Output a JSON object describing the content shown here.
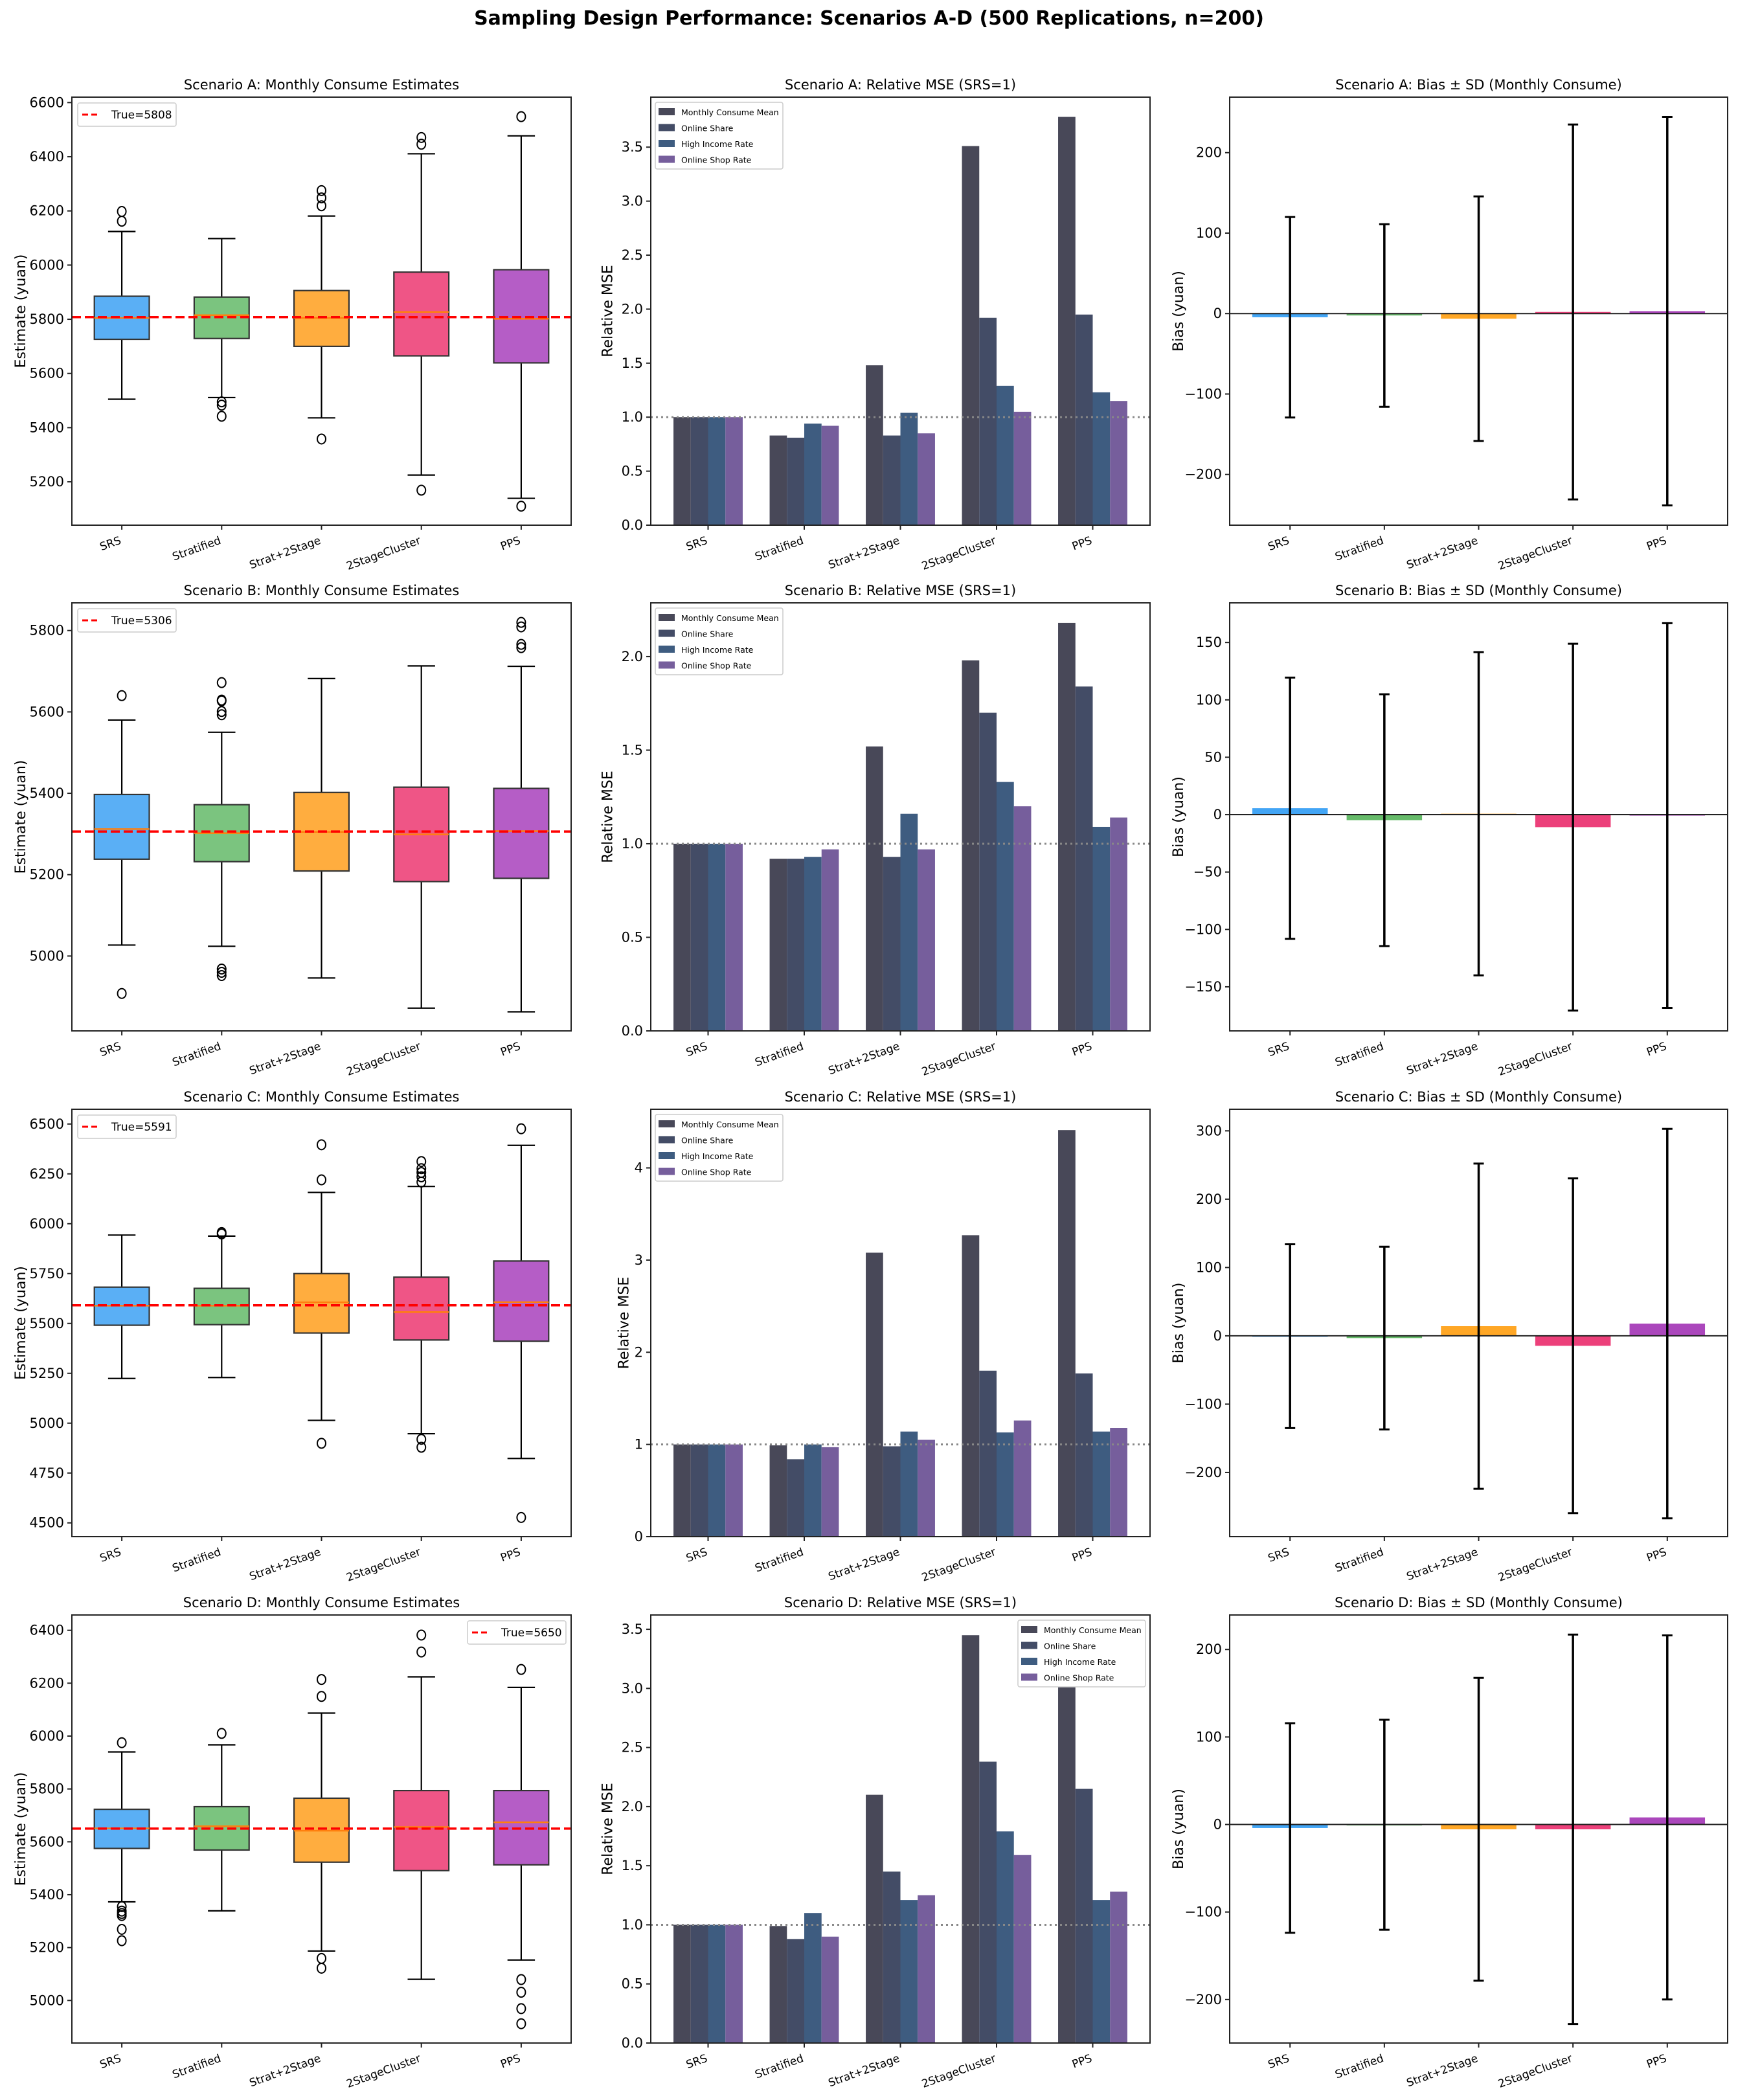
{
  "figure": {
    "title": "Sampling Design Performance: Scenarios A-D (500 Replications, n=200)"
  },
  "colors": {
    "box_fills": [
      "#5aaff5",
      "#7bc47f",
      "#ffad3f",
      "#ef5586",
      "#b55dc6"
    ],
    "bias_fills": [
      "#42a5f5",
      "#66bb6a",
      "#ffa726",
      "#ec407a",
      "#ab47bc"
    ],
    "series": [
      "#484858",
      "#434c66",
      "#3e5c80",
      "#765e9c"
    ],
    "median": "#ff7f0e",
    "true_line": "#ff0000"
  },
  "chart_data": [
    {
      "type": "box",
      "title": "Scenario A: Monthly Consume Estimates",
      "ylabel": "Estimate (yuan)",
      "categories": [
        "SRS",
        "Stratified",
        "Strat+2Stage",
        "2StageCluster",
        "PPS"
      ],
      "ylim": [
        5040,
        6620
      ],
      "yticks": [
        5200,
        5400,
        5600,
        5800,
        6000,
        6200,
        6400,
        6600
      ],
      "ytick_labels": [
        "5200",
        "5400",
        "5600",
        "5800",
        "6000",
        "6200",
        "6400",
        "6600"
      ],
      "true_value": 5808,
      "legend": "True=5808",
      "legend_loc": "upper-left",
      "boxes": [
        {
          "lo": 5505,
          "q1": 5726,
          "med": 5805,
          "q3": 5885,
          "hi": 6124,
          "out": [
            6162,
            6198
          ]
        },
        {
          "lo": 5511,
          "q1": 5729,
          "med": 5815,
          "q3": 5882,
          "hi": 6098,
          "out": [
            5495,
            5483,
            5442
          ]
        },
        {
          "lo": 5436,
          "q1": 5700,
          "med": 5805,
          "q3": 5906,
          "hi": 6181,
          "out": [
            5358,
            6219,
            6248,
            6275
          ]
        },
        {
          "lo": 5225,
          "q1": 5665,
          "med": 5827,
          "q3": 5974,
          "hi": 6411,
          "out": [
            5169,
            6446,
            6471
          ]
        },
        {
          "lo": 5139,
          "q1": 5639,
          "med": 5802,
          "q3": 5983,
          "hi": 6477,
          "out": [
            5110,
            6548
          ]
        }
      ]
    },
    {
      "type": "bar",
      "title": "Scenario A: Relative MSE (SRS=1)",
      "ylabel": "Relative MSE",
      "categories": [
        "SRS",
        "Stratified",
        "Strat+2Stage",
        "2StageCluster",
        "PPS"
      ],
      "ylim": [
        0,
        3.963
      ],
      "yticks": [
        0,
        0.5,
        1,
        1.5,
        2,
        2.5,
        3,
        3.5
      ],
      "ytick_labels": [
        "0.0",
        "0.5",
        "1.0",
        "1.5",
        "2.0",
        "2.5",
        "3.0",
        "3.5"
      ],
      "reference_line": 1.0,
      "legend_loc": "upper-left",
      "series": [
        {
          "name": "Monthly Consume Mean",
          "values": [
            1.0,
            0.83,
            1.48,
            3.51,
            3.78
          ]
        },
        {
          "name": "Online Share",
          "values": [
            1.0,
            0.81,
            0.83,
            1.92,
            1.95
          ]
        },
        {
          "name": "High Income Rate",
          "values": [
            1.0,
            0.94,
            1.04,
            1.29,
            1.23
          ]
        },
        {
          "name": "Online Shop Rate",
          "values": [
            1.0,
            0.92,
            0.85,
            1.05,
            1.15
          ]
        }
      ]
    },
    {
      "type": "bias",
      "title": "Scenario A: Bias ± SD (Monthly Consume)",
      "ylabel": "Bias (yuan)",
      "categories": [
        "SRS",
        "Stratified",
        "Strat+2Stage",
        "2StageCluster",
        "PPS"
      ],
      "ylim": [
        -263,
        269
      ],
      "yticks": [
        -200,
        -100,
        0,
        100,
        200
      ],
      "ytick_labels": [
        "−200",
        "−100",
        "0",
        "100",
        "200"
      ],
      "bias": [
        -4.6,
        -2.4,
        -6.4,
        2.0,
        3.0
      ],
      "sd": [
        124.6,
        113.5,
        152.0,
        233.0,
        241.5
      ]
    },
    {
      "type": "box",
      "title": "Scenario B: Monthly Consume Estimates",
      "ylabel": "Estimate (yuan)",
      "categories": [
        "SRS",
        "Stratified",
        "Strat+2Stage",
        "2StageCluster",
        "PPS"
      ],
      "ylim": [
        4816,
        5868
      ],
      "yticks": [
        5000,
        5200,
        5400,
        5600,
        5800
      ],
      "ytick_labels": [
        "5000",
        "5200",
        "5400",
        "5600",
        "5800"
      ],
      "true_value": 5306,
      "legend": "True=5306",
      "legend_loc": "upper-left",
      "boxes": [
        {
          "lo": 5027,
          "q1": 5238,
          "med": 5312,
          "q3": 5397,
          "hi": 5580,
          "out": [
            5640,
            4908
          ]
        },
        {
          "lo": 5024,
          "q1": 5232,
          "med": 5302,
          "q3": 5372,
          "hi": 5550,
          "out": [
            5672,
            5629,
            5627,
            5601,
            5593,
            4968,
            4960,
            4952
          ]
        },
        {
          "lo": 4946,
          "q1": 5209,
          "med": 5305,
          "q3": 5402,
          "hi": 5682,
          "out": []
        },
        {
          "lo": 4872,
          "q1": 5183,
          "med": 5299,
          "q3": 5415,
          "hi": 5713,
          "out": []
        },
        {
          "lo": 4863,
          "q1": 5191,
          "med": 5307,
          "q3": 5412,
          "hi": 5712,
          "out": [
            5820,
            5809,
            5766,
            5758
          ]
        }
      ]
    },
    {
      "type": "bar",
      "title": "Scenario B: Relative MSE (SRS=1)",
      "ylabel": "Relative MSE",
      "categories": [
        "SRS",
        "Stratified",
        "Strat+2Stage",
        "2StageCluster",
        "PPS"
      ],
      "ylim": [
        0,
        2.287
      ],
      "yticks": [
        0,
        0.5,
        1,
        1.5,
        2
      ],
      "ytick_labels": [
        "0.0",
        "0.5",
        "1.0",
        "1.5",
        "2.0"
      ],
      "reference_line": 1.0,
      "legend_loc": "upper-left",
      "series": [
        {
          "name": "Monthly Consume Mean",
          "values": [
            1.0,
            0.92,
            1.52,
            1.98,
            2.18
          ]
        },
        {
          "name": "Online Share",
          "values": [
            1.0,
            0.92,
            0.93,
            1.7,
            1.84
          ]
        },
        {
          "name": "High Income Rate",
          "values": [
            1.0,
            0.93,
            1.16,
            1.33,
            1.09
          ]
        },
        {
          "name": "Online Shop Rate",
          "values": [
            1.0,
            0.97,
            0.97,
            1.2,
            1.14
          ]
        }
      ]
    },
    {
      "type": "bias",
      "title": "Scenario B: Bias ± SD (Monthly Consume)",
      "ylabel": "Bias (yuan)",
      "categories": [
        "SRS",
        "Stratified",
        "Strat+2Stage",
        "2StageCluster",
        "PPS"
      ],
      "ylim": [
        -188.4,
        184.5
      ],
      "yticks": [
        -150,
        -100,
        -50,
        0,
        50,
        100,
        150
      ],
      "ytick_labels": [
        "−150",
        "−100",
        "−50",
        "0",
        "50",
        "100",
        "150"
      ],
      "bias": [
        5.6,
        -4.8,
        0.8,
        -10.9,
        -0.8
      ],
      "sd": [
        113.8,
        109.7,
        140.8,
        159.8,
        167.6
      ]
    },
    {
      "type": "box",
      "title": "Scenario C: Monthly Consume Estimates",
      "ylabel": "Estimate (yuan)",
      "categories": [
        "SRS",
        "Stratified",
        "Strat+2Stage",
        "2StageCluster",
        "PPS"
      ],
      "ylim": [
        4431,
        6574
      ],
      "yticks": [
        4500,
        4750,
        5000,
        5250,
        5500,
        5750,
        6000,
        6250,
        6500
      ],
      "ytick_labels": [
        "4500",
        "4750",
        "5000",
        "5250",
        "5500",
        "5750",
        "6000",
        "6250",
        "6500"
      ],
      "true_value": 5591,
      "legend": "True=5591",
      "legend_loc": "upper-left",
      "boxes": [
        {
          "lo": 5224,
          "q1": 5491,
          "med": 5589,
          "q3": 5682,
          "hi": 5943,
          "out": []
        },
        {
          "lo": 5229,
          "q1": 5494,
          "med": 5589,
          "q3": 5676,
          "hi": 5938,
          "out": [
            5956,
            5949
          ]
        },
        {
          "lo": 5014,
          "q1": 5452,
          "med": 5606,
          "q3": 5750,
          "hi": 6157,
          "out": [
            6396,
            6220,
            4899
          ]
        },
        {
          "lo": 4947,
          "q1": 5417,
          "med": 5557,
          "q3": 5732,
          "hi": 6187,
          "out": [
            6312,
            6276,
            6257,
            6235,
            6209,
            4919,
            4879
          ]
        },
        {
          "lo": 4823,
          "q1": 5411,
          "med": 5607,
          "q3": 5813,
          "hi": 6393,
          "out": [
            6476,
            4527
          ]
        }
      ]
    },
    {
      "type": "bar",
      "title": "Scenario C: Relative MSE (SRS=1)",
      "ylabel": "Relative MSE",
      "categories": [
        "SRS",
        "Stratified",
        "Strat+2Stage",
        "2StageCluster",
        "PPS"
      ],
      "ylim": [
        0,
        4.636
      ],
      "yticks": [
        0,
        1,
        2,
        3,
        4
      ],
      "ytick_labels": [
        "0",
        "1",
        "2",
        "3",
        "4"
      ],
      "reference_line": 1.0,
      "legend_loc": "upper-left",
      "series": [
        {
          "name": "Monthly Consume Mean",
          "values": [
            1.0,
            0.99,
            3.08,
            3.27,
            4.41
          ]
        },
        {
          "name": "Online Share",
          "values": [
            1.0,
            0.84,
            0.98,
            1.8,
            1.77
          ]
        },
        {
          "name": "High Income Rate",
          "values": [
            1.0,
            1.0,
            1.14,
            1.13,
            1.14
          ]
        },
        {
          "name": "Online Shop Rate",
          "values": [
            1.0,
            0.97,
            1.05,
            1.26,
            1.18
          ]
        }
      ]
    },
    {
      "type": "bias",
      "title": "Scenario C: Bias ± SD (Monthly Consume)",
      "ylabel": "Bias (yuan)",
      "categories": [
        "SRS",
        "Stratified",
        "Strat+2Stage",
        "2StageCluster",
        "PPS"
      ],
      "ylim": [
        -293.9,
        331.6
      ],
      "yticks": [
        -200,
        -100,
        0,
        100,
        200,
        300
      ],
      "ytick_labels": [
        "−200",
        "−100",
        "0",
        "100",
        "200",
        "300"
      ],
      "bias": [
        -0.5,
        -3.3,
        14.1,
        -14.6,
        17.9
      ],
      "sd": [
        134.5,
        133.8,
        238.0,
        245.0,
        285.0
      ]
    },
    {
      "type": "box",
      "title": "Scenario D: Monthly Consume Estimates",
      "ylabel": "Estimate (yuan)",
      "categories": [
        "SRS",
        "Stratified",
        "Strat+2Stage",
        "2StageCluster",
        "PPS"
      ],
      "ylim": [
        4839,
        6458
      ],
      "yticks": [
        5000,
        5200,
        5400,
        5600,
        5800,
        6000,
        6200,
        6400
      ],
      "ytick_labels": [
        "5000",
        "5200",
        "5400",
        "5600",
        "5800",
        "6000",
        "6200",
        "6400"
      ],
      "true_value": 5650,
      "legend": "True=5650",
      "legend_loc": "upper-right",
      "boxes": [
        {
          "lo": 5373,
          "q1": 5575,
          "med": 5651,
          "q3": 5723,
          "hi": 5940,
          "out": [
            5975,
            5355,
            5338,
            5329,
            5321,
            5269,
            5226
          ]
        },
        {
          "lo": 5339,
          "q1": 5569,
          "med": 5659,
          "q3": 5733,
          "hi": 5967,
          "out": [
            6010
          ]
        },
        {
          "lo": 5187,
          "q1": 5523,
          "med": 5642,
          "q3": 5765,
          "hi": 6087,
          "out": [
            6214,
            6150,
            5159,
            5122
          ]
        },
        {
          "lo": 5080,
          "q1": 5491,
          "med": 5656,
          "q3": 5794,
          "hi": 6224,
          "out": [
            6382,
            6318
          ]
        },
        {
          "lo": 5153,
          "q1": 5513,
          "med": 5674,
          "q3": 5794,
          "hi": 6184,
          "out": [
            6252,
            5079,
            5031,
            4969,
            4912
          ]
        }
      ]
    },
    {
      "type": "bar",
      "title": "Scenario D: Relative MSE (SRS=1)",
      "ylabel": "Relative MSE",
      "categories": [
        "SRS",
        "Stratified",
        "Strat+2Stage",
        "2StageCluster",
        "PPS"
      ],
      "ylim": [
        0,
        3.621
      ],
      "yticks": [
        0,
        0.5,
        1,
        1.5,
        2,
        2.5,
        3,
        3.5
      ],
      "ytick_labels": [
        "0.0",
        "0.5",
        "1.0",
        "1.5",
        "2.0",
        "2.5",
        "3.0",
        "3.5"
      ],
      "reference_line": 1.0,
      "legend_loc": "upper-right",
      "series": [
        {
          "name": "Monthly Consume Mean",
          "values": [
            1.0,
            0.99,
            2.1,
            3.45,
            3.01
          ]
        },
        {
          "name": "Online Share",
          "values": [
            1.0,
            0.88,
            1.45,
            2.38,
            2.15
          ]
        },
        {
          "name": "High Income Rate",
          "values": [
            1.0,
            1.1,
            1.21,
            1.79,
            1.21
          ]
        },
        {
          "name": "Online Shop Rate",
          "values": [
            1.0,
            0.9,
            1.25,
            1.59,
            1.28
          ]
        }
      ]
    },
    {
      "type": "bias",
      "title": "Scenario D: Bias ± SD (Monthly Consume)",
      "ylabel": "Bias (yuan)",
      "categories": [
        "SRS",
        "Stratified",
        "Strat+2Stage",
        "2StageCluster",
        "PPS"
      ],
      "ylim": [
        -249.7,
        239.4
      ],
      "yticks": [
        -200,
        -100,
        0,
        100,
        200
      ],
      "ytick_labels": [
        "−200",
        "−100",
        "0",
        "100",
        "200"
      ],
      "bias": [
        -4.0,
        -0.3,
        -5.5,
        -5.5,
        8.1
      ],
      "sd": [
        119.7,
        120.0,
        173.0,
        222.5,
        208.0
      ]
    }
  ]
}
